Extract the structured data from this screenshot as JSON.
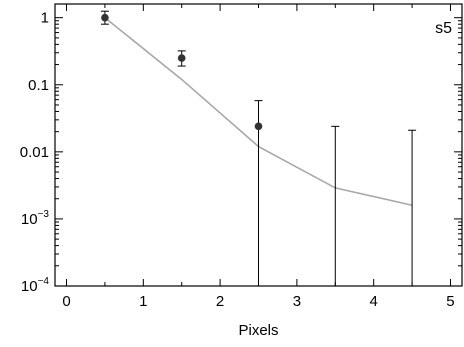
{
  "chart_data": {
    "type": "scatter",
    "xlabel": "Pixels",
    "ylabel": "",
    "panel_label": "s5",
    "xlim": [
      -0.15,
      5.15
    ],
    "ylim": [
      0.0001,
      1.6
    ],
    "y_scale": "log",
    "grid": false,
    "x_ticks": [
      "0",
      "1",
      "2",
      "3",
      "4",
      "5"
    ],
    "y_ticks": [
      {
        "value": 1,
        "label": "1"
      },
      {
        "value": 0.1,
        "label": "0.1"
      },
      {
        "value": 0.01,
        "label": "0.01"
      },
      {
        "value": 0.001,
        "base": "10",
        "exp": "−3"
      },
      {
        "value": 0.0001,
        "base": "10",
        "exp": "−4"
      }
    ],
    "series": [
      {
        "kind": "points-with-errorbars",
        "color": "#333333",
        "x": [
          0.5,
          1.5,
          2.5,
          3.5,
          4.5
        ],
        "y": [
          1.0,
          0.25,
          0.024,
          null,
          null
        ],
        "err_low": [
          0.8,
          0.19,
          0.0001,
          0.0001,
          0.0001
        ],
        "err_high": [
          1.25,
          0.32,
          0.058,
          0.024,
          0.021
        ]
      },
      {
        "kind": "line",
        "color": "#a8a8a8",
        "x": [
          0.5,
          1.5,
          2.5,
          3.5,
          4.5
        ],
        "y": [
          1.0,
          0.12,
          0.012,
          0.0029,
          0.0016
        ]
      }
    ]
  }
}
